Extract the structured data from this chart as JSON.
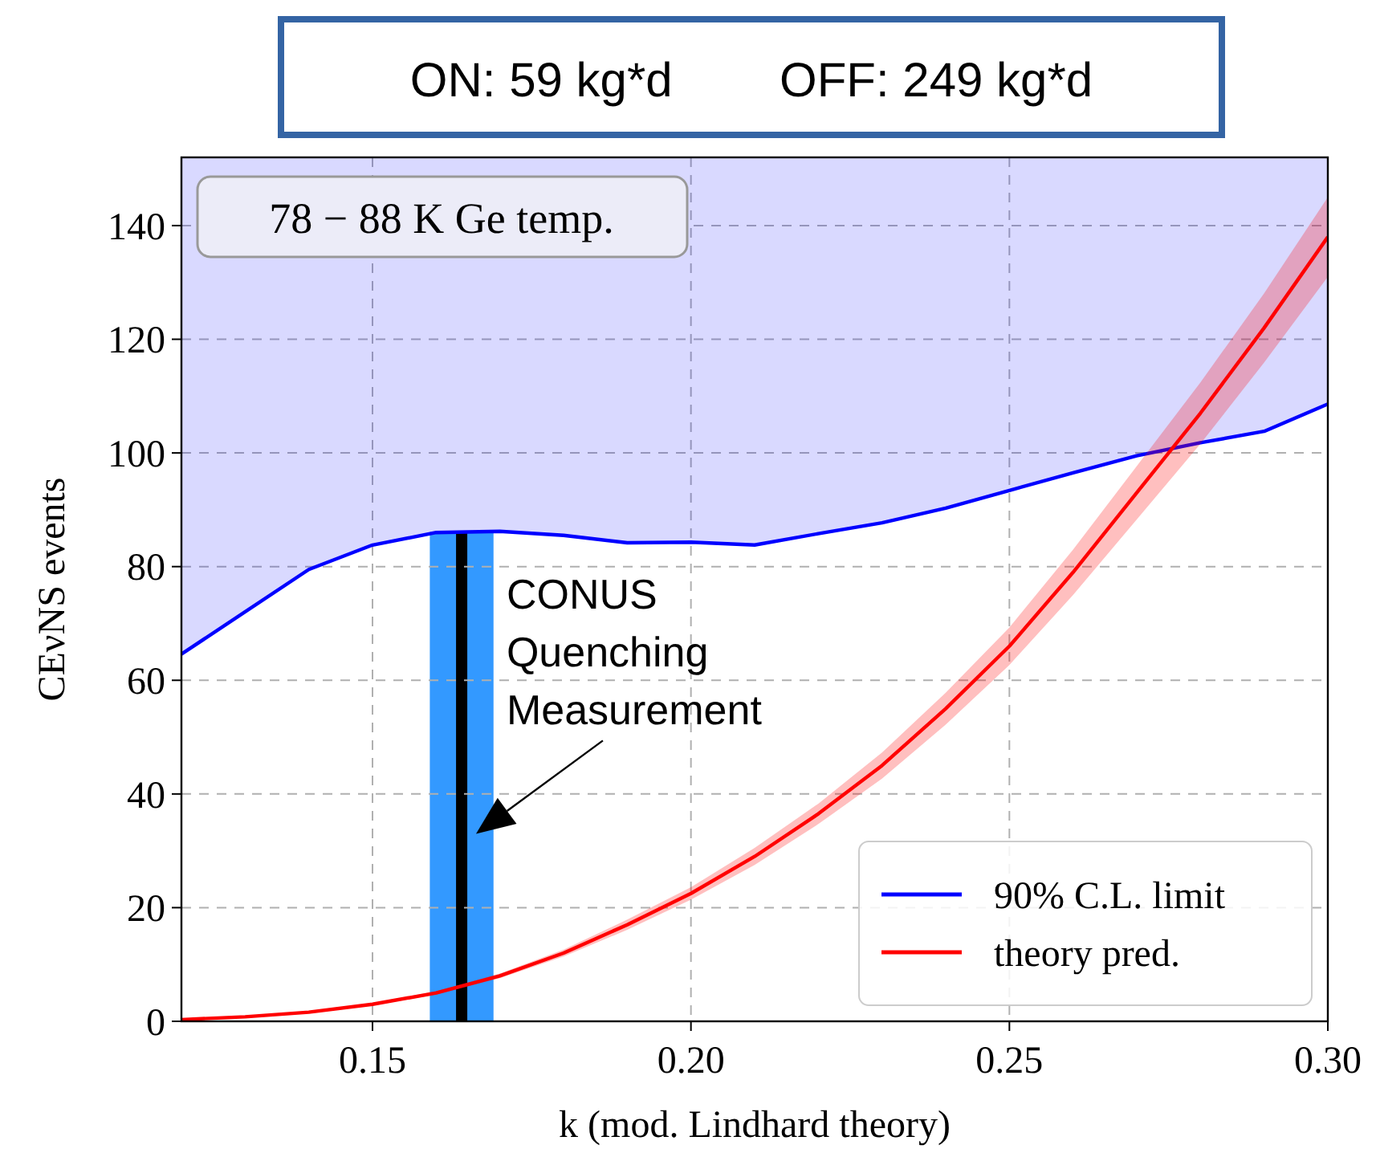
{
  "chart_data": {
    "type": "line",
    "title": "ON: 59 kg*d        OFF: 249 kg*d",
    "xlabel": "k (mod. Lindhard theory)",
    "ylabel": "CEνNS events",
    "xlim": [
      0.12,
      0.3
    ],
    "xticks": [
      {
        "value": 0.15,
        "label": "0.15"
      },
      {
        "value": 0.2,
        "label": "0.20"
      },
      {
        "value": 0.25,
        "label": "0.25"
      },
      {
        "value": 0.3,
        "label": "0.30"
      }
    ],
    "ylim": [
      0,
      152
    ],
    "yticks": [
      0,
      20,
      40,
      60,
      80,
      100,
      120,
      140
    ],
    "grid": true,
    "line_style": "solid",
    "legend": "bottom right",
    "series": [
      {
        "name": "90% C.L. limit",
        "color": "#0000ff",
        "x": [
          0.12,
          0.14,
          0.15,
          0.16,
          0.17,
          0.18,
          0.19,
          0.2,
          0.21,
          0.22,
          0.23,
          0.24,
          0.25,
          0.26,
          0.27,
          0.28,
          0.29,
          0.3
        ],
        "values": [
          64.6,
          79.5,
          83.8,
          86,
          86.2,
          85.5,
          84.2,
          84.3,
          83.8,
          85.8,
          87.7,
          90.3,
          93.4,
          96.5,
          99.5,
          101.8,
          103.8,
          108.6
        ],
        "lower": [
          64.6,
          79.5,
          83.8,
          86,
          86.2,
          85.5,
          84.2,
          84.3,
          83.8,
          85.8,
          87.7,
          90.3,
          93.4,
          96.5,
          99.5,
          101.8,
          103.8,
          108.6
        ],
        "upper": [
          152,
          152,
          152,
          152,
          152,
          152,
          152,
          152,
          152,
          152,
          152,
          152,
          152,
          152,
          152,
          152,
          152,
          152
        ]
      },
      {
        "name": "theory pred.",
        "color": "#ff0000",
        "x": [
          0.12,
          0.13,
          0.14,
          0.15,
          0.16,
          0.17,
          0.18,
          0.19,
          0.2,
          0.21,
          0.22,
          0.23,
          0.24,
          0.25,
          0.26,
          0.27,
          0.28,
          0.29,
          0.3
        ],
        "values": [
          0.3,
          0.8,
          1.6,
          3,
          5,
          8,
          12,
          17,
          22.5,
          29,
          36.5,
          45,
          55,
          66,
          79,
          93,
          107,
          122,
          138
        ],
        "lower": [
          0.3,
          0.8,
          1.5,
          2.8,
          4.7,
          7.6,
          11.4,
          16.1,
          21.4,
          27.5,
          34.7,
          42.7,
          52.2,
          62.7,
          75,
          88.3,
          101.6,
          115.9,
          131
        ],
        "upper": [
          0.3,
          0.8,
          1.7,
          3.2,
          5.3,
          8.4,
          12.6,
          17.9,
          23.6,
          30.5,
          38.3,
          47.3,
          57.8,
          69.3,
          83,
          97.7,
          112.4,
          128.1,
          145
        ]
      }
    ],
    "bands": [
      {
        "axis": "x",
        "from": 0.159,
        "to": 0.169,
        "color": "#3399ff"
      }
    ],
    "ref_lines": [
      {
        "axis": "x",
        "value": 0.164,
        "color": "#000000"
      }
    ],
    "annotations": [
      "78 − 88 K Ge temp.",
      {
        "text": "CONUS Quenching Measurement",
        "x": 0.166,
        "y": 33
      }
    ]
  }
}
